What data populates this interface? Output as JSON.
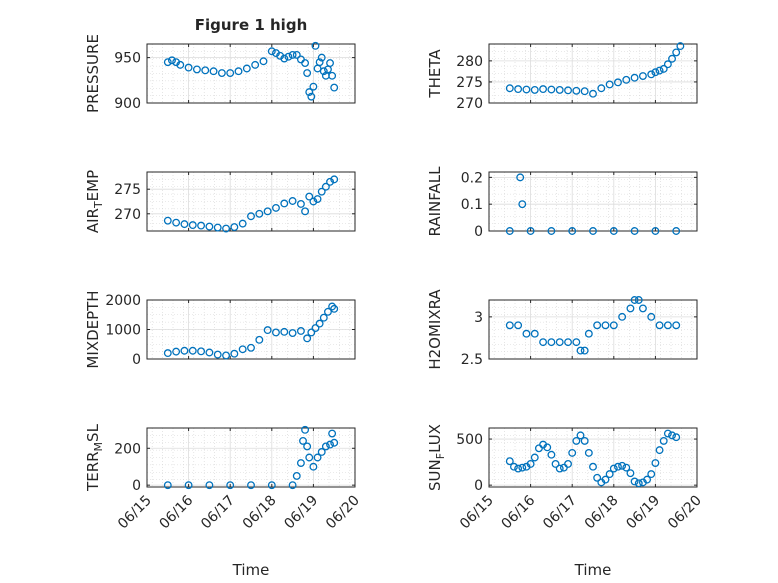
{
  "figure": {
    "title": "Figure 1 high",
    "xlabel": "Time",
    "marker_color": "#0072BD",
    "x_ticks": [
      "06/15",
      "06/16",
      "06/17",
      "06/18",
      "06/19",
      "06/20"
    ]
  },
  "chart_data": [
    {
      "type": "scatter",
      "title": "Figure 1 high",
      "ylabel": "PRESSURE",
      "xlim": [
        0,
        5
      ],
      "ylim": [
        900,
        965
      ],
      "yticks": [
        900,
        950
      ],
      "ytick_labels": [
        "900",
        "950"
      ],
      "x": [
        0.5,
        0.6,
        0.7,
        0.8,
        1.0,
        1.2,
        1.4,
        1.6,
        1.8,
        2.0,
        2.2,
        2.4,
        2.6,
        2.8,
        3.0,
        3.1,
        3.2,
        3.3,
        3.4,
        3.5,
        3.6,
        3.7,
        3.8,
        3.85,
        3.9,
        3.95,
        4.0,
        4.05,
        4.1,
        4.15,
        4.2,
        4.25,
        4.3,
        4.35,
        4.4,
        4.45,
        4.5
      ],
      "y": [
        945,
        947,
        945,
        942,
        939,
        937,
        936,
        935,
        933,
        933,
        935,
        938,
        942,
        946,
        957,
        955,
        952,
        949,
        951,
        953,
        953,
        948,
        944,
        933,
        912,
        907,
        918,
        963,
        938,
        945,
        950,
        935,
        930,
        937,
        944,
        930,
        917
      ]
    },
    {
      "type": "scatter",
      "ylabel": "THETA",
      "xlim": [
        0,
        5
      ],
      "ylim": [
        270,
        284
      ],
      "yticks": [
        270,
        275,
        280
      ],
      "ytick_labels": [
        "270",
        "275",
        "280"
      ],
      "x": [
        0.5,
        0.7,
        0.9,
        1.1,
        1.3,
        1.5,
        1.7,
        1.9,
        2.1,
        2.3,
        2.5,
        2.7,
        2.9,
        3.1,
        3.3,
        3.5,
        3.7,
        3.9,
        4.0,
        4.1,
        4.2,
        4.3,
        4.4,
        4.5,
        4.6
      ],
      "y": [
        273.5,
        273.3,
        273.2,
        273.1,
        273.3,
        273.2,
        273.1,
        273.0,
        272.9,
        272.8,
        272.2,
        273.5,
        274.4,
        274.9,
        275.5,
        276.0,
        276.4,
        276.8,
        277.3,
        277.7,
        278.1,
        279.2,
        280.5,
        282.0,
        283.5
      ]
    },
    {
      "type": "scatter",
      "ylabel": "AIR_TEMP",
      "ylabel_parts": {
        "base": "AIR",
        "sub": "T",
        "rest": "EMP"
      },
      "xlim": [
        0,
        5
      ],
      "ylim": [
        266.5,
        278.5
      ],
      "yticks": [
        270,
        275
      ],
      "ytick_labels": [
        "270",
        "275"
      ],
      "x": [
        0.5,
        0.7,
        0.9,
        1.1,
        1.3,
        1.5,
        1.7,
        1.9,
        2.1,
        2.3,
        2.5,
        2.7,
        2.9,
        3.1,
        3.3,
        3.5,
        3.7,
        3.8,
        3.9,
        4.0,
        4.1,
        4.2,
        4.3,
        4.4,
        4.5
      ],
      "y": [
        268.6,
        268.2,
        267.9,
        267.7,
        267.6,
        267.4,
        267.2,
        267.0,
        267.3,
        268.0,
        269.5,
        270.0,
        270.5,
        271.2,
        272.1,
        272.6,
        272.0,
        270.5,
        273.5,
        272.5,
        273.0,
        274.5,
        275.5,
        276.5,
        277.0
      ]
    },
    {
      "type": "scatter",
      "ylabel": "RAINFALL",
      "xlim": [
        0,
        5
      ],
      "ylim": [
        0,
        0.22
      ],
      "yticks": [
        0,
        0.1,
        0.2
      ],
      "ytick_labels": [
        "0",
        "0.1",
        "0.2"
      ],
      "x": [
        0.5,
        0.75,
        0.8,
        1.0,
        1.5,
        2.0,
        2.5,
        3.0,
        3.5,
        4.0,
        4.5
      ],
      "y": [
        0,
        0.2,
        0.1,
        0,
        0,
        0,
        0,
        0,
        0,
        0,
        0
      ]
    },
    {
      "type": "scatter",
      "ylabel": "MIXDEPTH",
      "xlim": [
        0,
        5
      ],
      "ylim": [
        0,
        2000
      ],
      "yticks": [
        0,
        1000,
        2000
      ],
      "ytick_labels": [
        "0",
        "1000",
        "2000"
      ],
      "x": [
        0.5,
        0.7,
        0.9,
        1.1,
        1.3,
        1.5,
        1.7,
        1.9,
        2.1,
        2.3,
        2.5,
        2.7,
        2.9,
        3.1,
        3.3,
        3.5,
        3.7,
        3.85,
        3.95,
        4.05,
        4.15,
        4.25,
        4.35,
        4.45,
        4.5
      ],
      "y": [
        200,
        250,
        280,
        280,
        260,
        220,
        150,
        120,
        180,
        330,
        380,
        650,
        980,
        900,
        920,
        880,
        950,
        700,
        900,
        1050,
        1200,
        1400,
        1600,
        1780,
        1700
      ]
    },
    {
      "type": "scatter",
      "ylabel": "H2OMIXRA",
      "xlim": [
        0,
        5
      ],
      "ylim": [
        2.5,
        3.2
      ],
      "yticks": [
        2.5,
        3
      ],
      "ytick_labels": [
        "2.5",
        "3"
      ],
      "x": [
        0.5,
        0.7,
        0.9,
        1.1,
        1.3,
        1.5,
        1.7,
        1.9,
        2.1,
        2.2,
        2.3,
        2.4,
        2.6,
        2.8,
        3.0,
        3.2,
        3.4,
        3.5,
        3.6,
        3.7,
        3.9,
        4.1,
        4.3,
        4.5
      ],
      "y": [
        2.9,
        2.9,
        2.8,
        2.8,
        2.7,
        2.7,
        2.7,
        2.7,
        2.7,
        2.6,
        2.6,
        2.8,
        2.9,
        2.9,
        2.9,
        3.0,
        3.1,
        3.2,
        3.2,
        3.1,
        3.0,
        2.9,
        2.9,
        2.9
      ]
    },
    {
      "type": "scatter",
      "ylabel": "TERR_MSL",
      "ylabel_parts": {
        "base": "TERR",
        "sub": "M",
        "rest": "SL"
      },
      "xlim": [
        0,
        5
      ],
      "ylim": [
        -10,
        310
      ],
      "yticks": [
        0,
        200
      ],
      "ytick_labels": [
        "0",
        "200"
      ],
      "x": [
        0.5,
        1.0,
        1.5,
        2.0,
        2.5,
        3.0,
        3.5,
        3.6,
        3.7,
        3.75,
        3.8,
        3.85,
        3.9,
        4.0,
        4.1,
        4.2,
        4.3,
        4.4,
        4.45,
        4.5
      ],
      "y": [
        0,
        0,
        0,
        0,
        0,
        0,
        0,
        50,
        120,
        240,
        300,
        210,
        150,
        100,
        150,
        180,
        210,
        220,
        280,
        230
      ]
    },
    {
      "type": "scatter",
      "ylabel": "SUN_FLUX",
      "ylabel_parts": {
        "base": "SUN",
        "sub": "F",
        "rest": "LUX"
      },
      "xlim": [
        0,
        5
      ],
      "ylim": [
        -20,
        620
      ],
      "yticks": [
        0,
        500
      ],
      "ytick_labels": [
        "0",
        "500"
      ],
      "x": [
        0.5,
        0.6,
        0.7,
        0.8,
        0.9,
        1.0,
        1.1,
        1.2,
        1.3,
        1.4,
        1.5,
        1.6,
        1.7,
        1.8,
        1.9,
        2.0,
        2.1,
        2.2,
        2.3,
        2.4,
        2.5,
        2.6,
        2.7,
        2.8,
        2.9,
        3.0,
        3.1,
        3.2,
        3.3,
        3.4,
        3.5,
        3.6,
        3.7,
        3.8,
        3.9,
        4.0,
        4.1,
        4.2,
        4.3,
        4.4,
        4.5
      ],
      "y": [
        260,
        200,
        180,
        190,
        200,
        230,
        300,
        400,
        440,
        410,
        330,
        230,
        180,
        190,
        230,
        350,
        480,
        540,
        480,
        350,
        200,
        80,
        30,
        60,
        120,
        180,
        200,
        210,
        190,
        130,
        40,
        20,
        30,
        60,
        120,
        240,
        380,
        480,
        560,
        540,
        520
      ]
    }
  ]
}
